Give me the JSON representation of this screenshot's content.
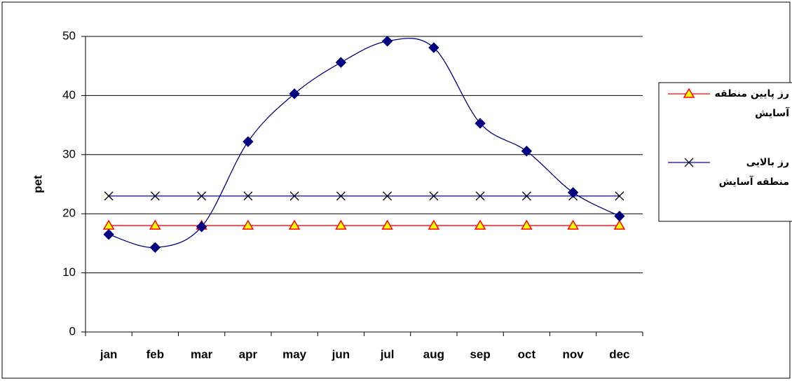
{
  "chart_data": {
    "type": "line",
    "y_label": "pet",
    "categories": [
      "jan",
      "feb",
      "mar",
      "apr",
      "may",
      "jun",
      "jul",
      "aug",
      "sep",
      "oct",
      "nov",
      "dec"
    ],
    "ylim": [
      0,
      50
    ],
    "yticks": [
      0,
      10,
      20,
      30,
      40,
      50
    ],
    "grid": true,
    "series": [
      {
        "name": "رز پایین منطقه آسایش",
        "color": "#ff0000",
        "marker": "triangle",
        "values": [
          18,
          18,
          18,
          18,
          18,
          18,
          18,
          18,
          18,
          18,
          18,
          18
        ]
      },
      {
        "name": "رز بالایی منطقه آسایش",
        "color": "#0000cc",
        "marker": "x",
        "values": [
          23,
          23,
          23,
          23,
          23,
          23,
          23,
          23,
          23,
          23,
          23,
          23
        ]
      },
      {
        "color": "#000080",
        "marker": "diamond",
        "smooth": true,
        "values": [
          16.5,
          14.3,
          17.8,
          32.2,
          40.3,
          45.6,
          49.2,
          48.1,
          35.3,
          30.6,
          23.6,
          19.6
        ]
      }
    ]
  }
}
